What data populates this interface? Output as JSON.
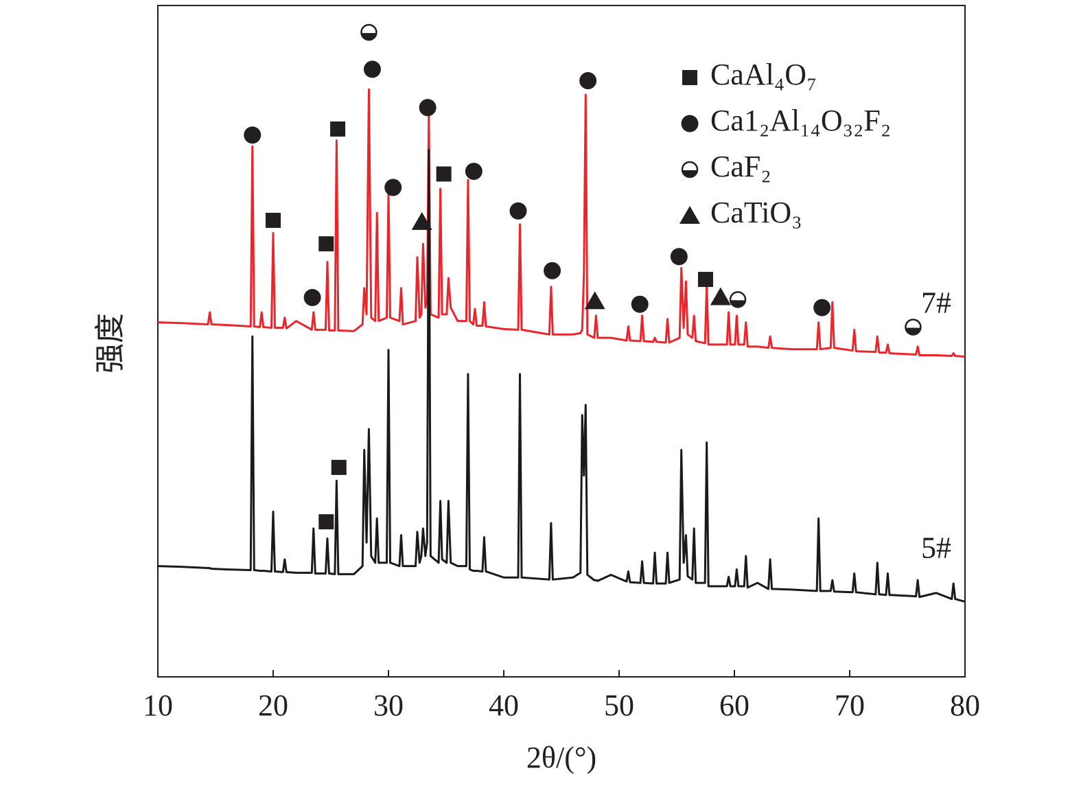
{
  "chart_data": {
    "type": "line",
    "xlabel": "2θ/(°)",
    "ylabel": "强度",
    "xlim": [
      10,
      80
    ],
    "xticks": [
      10,
      20,
      30,
      40,
      50,
      60,
      70,
      80
    ],
    "ylim": [
      0,
      100
    ],
    "x": [
      10,
      12,
      14.35,
      14.5,
      14.65,
      16,
      18.05,
      18.2,
      18.35,
      18.85,
      19.0,
      19.15,
      19.85,
      20.0,
      20.15,
      20.85,
      21.0,
      21.15,
      22,
      23.35,
      23.5,
      23.65,
      24.55,
      24.7,
      24.85,
      25.35,
      25.5,
      25.65,
      27,
      27.75,
      27.9,
      28.1,
      28.3,
      28.5,
      28.85,
      29.0,
      29.15,
      29.85,
      30.0,
      30.15,
      30.95,
      31.1,
      31.25,
      32.35,
      32.5,
      32.7,
      32.85,
      33.0,
      33.2,
      33.35,
      33.5,
      33.65,
      34.35,
      34.5,
      34.65,
      35.05,
      35.2,
      35.4,
      36.0,
      36.75,
      36.9,
      37.05,
      37.35,
      37.5,
      37.65,
      38.15,
      38.3,
      38.45,
      40,
      41.25,
      41.4,
      41.55,
      43.95,
      44.1,
      44.25,
      46.0,
      46.65,
      46.8,
      46.95,
      47.1,
      47.25,
      47.85,
      48.0,
      48.15,
      49.3,
      50.65,
      50.8,
      50.95,
      51.85,
      52.0,
      52.15,
      52.95,
      53.1,
      53.25,
      54.05,
      54.2,
      54.35,
      55.25,
      55.4,
      55.6,
      55.8,
      55.95,
      56.35,
      56.5,
      56.65,
      57.45,
      57.6,
      57.75,
      59.35,
      59.5,
      59.65,
      60.05,
      60.2,
      60.35,
      60.85,
      61.0,
      61.15,
      62,
      62.95,
      63.1,
      63.25,
      65,
      67.15,
      67.3,
      67.45,
      68.35,
      68.5,
      68.65,
      70.25,
      70.4,
      70.55,
      72.25,
      72.4,
      72.55,
      73.15,
      73.3,
      73.45,
      75.75,
      75.9,
      76.05,
      77.5,
      78.85,
      79.0,
      79.15,
      80
    ],
    "series": [
      {
        "name": "7#",
        "color": "#e8262b",
        "values": [
          52.8,
          52.7,
          52.5,
          54.3,
          52.5,
          52.4,
          52.2,
          79.0,
          52.2,
          52.1,
          54.3,
          52.1,
          52.0,
          66.1,
          52.0,
          52.0,
          53.5,
          51.9,
          53.0,
          51.7,
          54.3,
          51.7,
          51.7,
          61.8,
          51.6,
          51.6,
          79.9,
          51.6,
          51.5,
          52.5,
          57.9,
          54,
          87.5,
          53.5,
          53.0,
          69.1,
          53.0,
          53.5,
          71.9,
          53.5,
          53.0,
          57.9,
          52.5,
          53.0,
          62.5,
          53.5,
          54.0,
          64.5,
          55.0,
          56,
          83.9,
          54,
          53.5,
          72.7,
          54,
          54,
          59.4,
          55,
          53,
          53,
          74.0,
          53,
          52.5,
          54.8,
          52.3,
          52.3,
          55.8,
          52.2,
          51.8,
          51.7,
          67.4,
          51.7,
          51.0,
          58.1,
          51.0,
          51.0,
          51.2,
          51.7,
          60,
          86.7,
          51.0,
          50.5,
          53.8,
          50.5,
          50.5,
          50.1,
          52.2,
          50.1,
          50.0,
          53.8,
          50.0,
          49.9,
          50.5,
          49.9,
          49.8,
          53.3,
          49.8,
          50.5,
          60.9,
          52,
          58.9,
          51,
          50.5,
          53.8,
          50,
          49.7,
          58.4,
          49.5,
          49.5,
          54.3,
          49.5,
          49.5,
          53.8,
          49.5,
          49.5,
          52.8,
          49.2,
          49.2,
          49.0,
          50.7,
          49.0,
          48.8,
          48.8,
          52.8,
          48.8,
          49,
          55.8,
          49,
          48.6,
          51.7,
          48.5,
          48.4,
          50.7,
          48.3,
          48.3,
          49.5,
          48.2,
          48.0,
          49.2,
          47.9,
          47.9,
          47.8,
          48.2,
          47.8,
          47.7
        ]
      },
      {
        "name": "5#",
        "color": "#1a1a1a",
        "values": [
          16.5,
          16.4,
          16.2,
          16.2,
          16.1,
          16.0,
          15.9,
          50.7,
          15.9,
          15.8,
          15.8,
          15.8,
          15.7,
          24.6,
          15.7,
          15.6,
          17.5,
          15.6,
          15.5,
          15.5,
          22.1,
          15.4,
          15.4,
          20.6,
          15.4,
          15.3,
          29.2,
          15.3,
          15.3,
          16.5,
          33.8,
          20,
          36.9,
          18,
          17,
          23.6,
          17,
          17,
          48.7,
          17,
          16.5,
          21.1,
          16.5,
          16.5,
          21.6,
          17,
          18,
          22.1,
          18,
          20,
          78.5,
          18,
          17,
          26.2,
          17.5,
          17,
          26.2,
          17,
          16.5,
          16.5,
          45.1,
          16.0,
          15.8,
          15.8,
          15.8,
          15.7,
          20.8,
          15.7,
          14.8,
          14.8,
          45.1,
          14.8,
          14.5,
          22.9,
          14.5,
          14.8,
          15.5,
          39.0,
          30,
          40.5,
          15.2,
          14.4,
          14.4,
          14.3,
          15.2,
          14.2,
          15.7,
          14.1,
          14.0,
          17.2,
          14.0,
          13.9,
          18.5,
          13.9,
          13.9,
          18.5,
          14.0,
          14.5,
          33.8,
          17,
          21.1,
          15,
          14.5,
          22.1,
          14,
          14,
          34.9,
          13.5,
          13.5,
          14.9,
          13.5,
          13.5,
          16.0,
          13.5,
          13.5,
          18.0,
          13.3,
          14.0,
          13.1,
          17.5,
          13.1,
          13.0,
          12.8,
          23.6,
          12.8,
          12.8,
          14.4,
          12.7,
          12.6,
          15.4,
          12.6,
          12.3,
          17.0,
          12.3,
          12.2,
          15.4,
          12.2,
          12.0,
          14.4,
          11.9,
          12.5,
          11.6,
          13.9,
          11.6,
          11.2
        ]
      }
    ],
    "phases": [
      {
        "name": "CaAl₄O₇",
        "symbol": "square"
      },
      {
        "name": "Ca1₂Al₁₄O₃₂F₂",
        "symbol": "circle"
      },
      {
        "name": "CaF₂",
        "symbol": "half-circle"
      },
      {
        "name": "CaTiO₃",
        "symbol": "triangle"
      }
    ],
    "markers": [
      {
        "x": 18.2,
        "y": 80.7,
        "phase": 1
      },
      {
        "x": 20.0,
        "y": 68.0,
        "phase": 0
      },
      {
        "x": 23.4,
        "y": 56.5,
        "phase": 1
      },
      {
        "x": 24.6,
        "y": 64.5,
        "phase": 0
      },
      {
        "x": 25.6,
        "y": 81.6,
        "phase": 0
      },
      {
        "x": 28.3,
        "y": 96.0,
        "phase": 2
      },
      {
        "x": 28.6,
        "y": 90.5,
        "phase": 1
      },
      {
        "x": 30.4,
        "y": 72.9,
        "phase": 1
      },
      {
        "x": 32.9,
        "y": 67.8,
        "phase": 3
      },
      {
        "x": 33.4,
        "y": 84.8,
        "phase": 1
      },
      {
        "x": 34.8,
        "y": 74.9,
        "phase": 0
      },
      {
        "x": 37.4,
        "y": 75.3,
        "phase": 1
      },
      {
        "x": 41.25,
        "y": 69.4,
        "phase": 1
      },
      {
        "x": 44.2,
        "y": 60.5,
        "phase": 1
      },
      {
        "x": 47.3,
        "y": 88.8,
        "phase": 1
      },
      {
        "x": 47.9,
        "y": 56.0,
        "phase": 3
      },
      {
        "x": 51.8,
        "y": 55.5,
        "phase": 1
      },
      {
        "x": 55.2,
        "y": 62.6,
        "phase": 1
      },
      {
        "x": 57.5,
        "y": 59.2,
        "phase": 0
      },
      {
        "x": 58.8,
        "y": 56.6,
        "phase": 3
      },
      {
        "x": 60.3,
        "y": 56.2,
        "phase": 2
      },
      {
        "x": 67.6,
        "y": 55.0,
        "phase": 1
      },
      {
        "x": 75.5,
        "y": 52.1,
        "phase": 2
      },
      {
        "x": 25.7,
        "y": 31.2,
        "phase": 0
      },
      {
        "x": 24.6,
        "y": 23.1,
        "phase": 0
      }
    ]
  }
}
